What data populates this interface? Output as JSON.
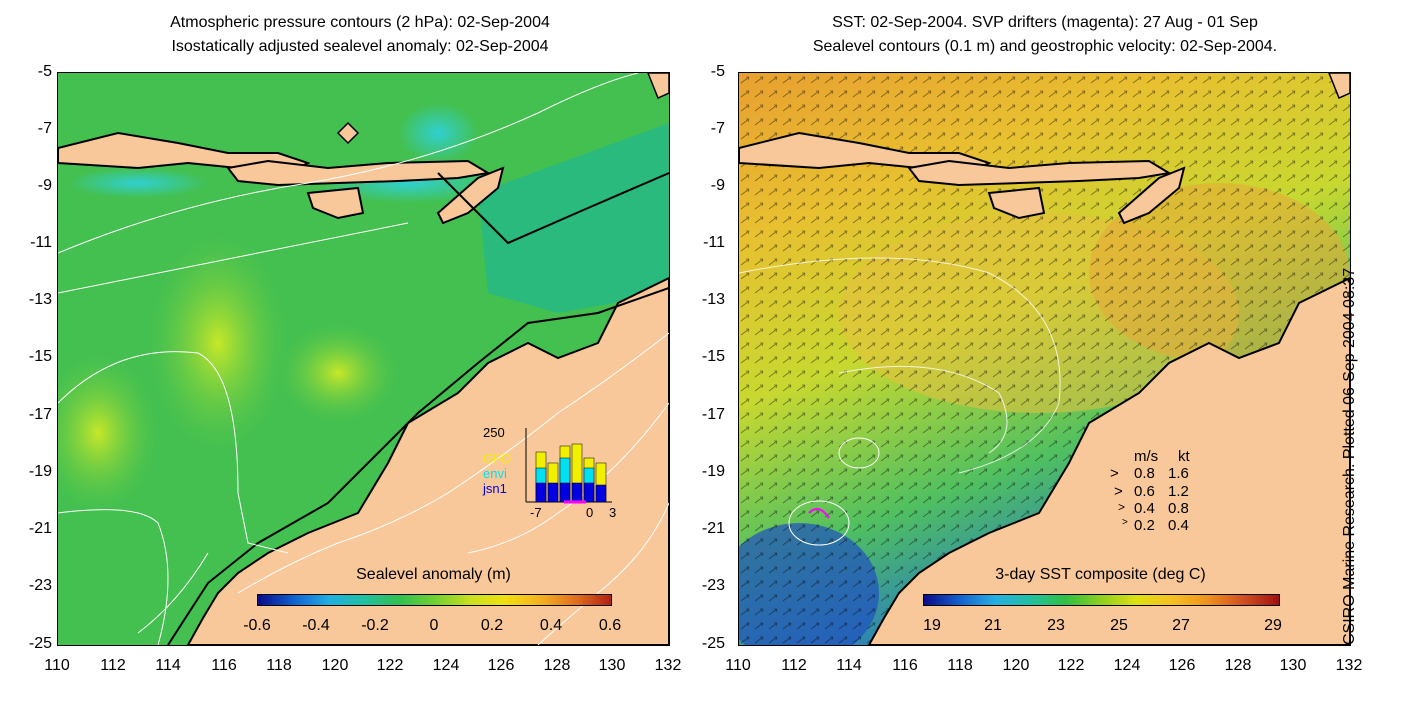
{
  "left_panel": {
    "title_line1": "Atmospheric pressure contours (2 hPa): 02-Sep-2004",
    "title_line2": "Isostatically adjusted sealevel anomaly: 02-Sep-2004",
    "colorbar": {
      "title": "Sealevel anomaly (m)",
      "labels": [
        "-0.6",
        "-0.4",
        "-0.2",
        "0",
        "0.2",
        "0.4",
        "0.6"
      ]
    },
    "inset": {
      "ymax_label": "250",
      "series_labels": [
        "GFO",
        "envi",
        "jsn1"
      ],
      "series_colors": [
        "#f0f000",
        "#00e0f0",
        "#0000e0"
      ],
      "x_labels": [
        "-7",
        "0",
        "3"
      ]
    }
  },
  "right_panel": {
    "title_line1": "SST: 02-Sep-2004. SVP drifters (magenta): 27 Aug - 01 Sep",
    "title_line2": "Sealevel contours (0.1 m) and geostrophic velocity: 02-Sep-2004.",
    "colorbar": {
      "title": "3-day SST composite (deg C)",
      "labels": [
        "19",
        "21",
        "23",
        "25",
        "27",
        "29"
      ]
    },
    "velocity_legend": {
      "header_ms": "m/s",
      "header_kt": "kt",
      "rows": [
        {
          "ms": "0.8",
          "kt": "1.6"
        },
        {
          "ms": "0.6",
          "kt": "1.2"
        },
        {
          "ms": "0.4",
          "kt": "0.8"
        },
        {
          "ms": "0.2",
          "kt": "0.4"
        }
      ]
    }
  },
  "axes": {
    "y_labels": [
      "-5",
      "-7",
      "-9",
      "-11",
      "-13",
      "-15",
      "-17",
      "-19",
      "-21",
      "-23",
      "-25"
    ],
    "x_labels": [
      "110",
      "112",
      "114",
      "116",
      "118",
      "120",
      "122",
      "124",
      "126",
      "128",
      "130",
      "132"
    ]
  },
  "credit": "CSIRO Marine Research. Plotted 06-Sep-2004 08:37",
  "colors": {
    "land": "#f8c89a",
    "ocean_left": "#40c050",
    "ocean_right": "#e0b030"
  }
}
